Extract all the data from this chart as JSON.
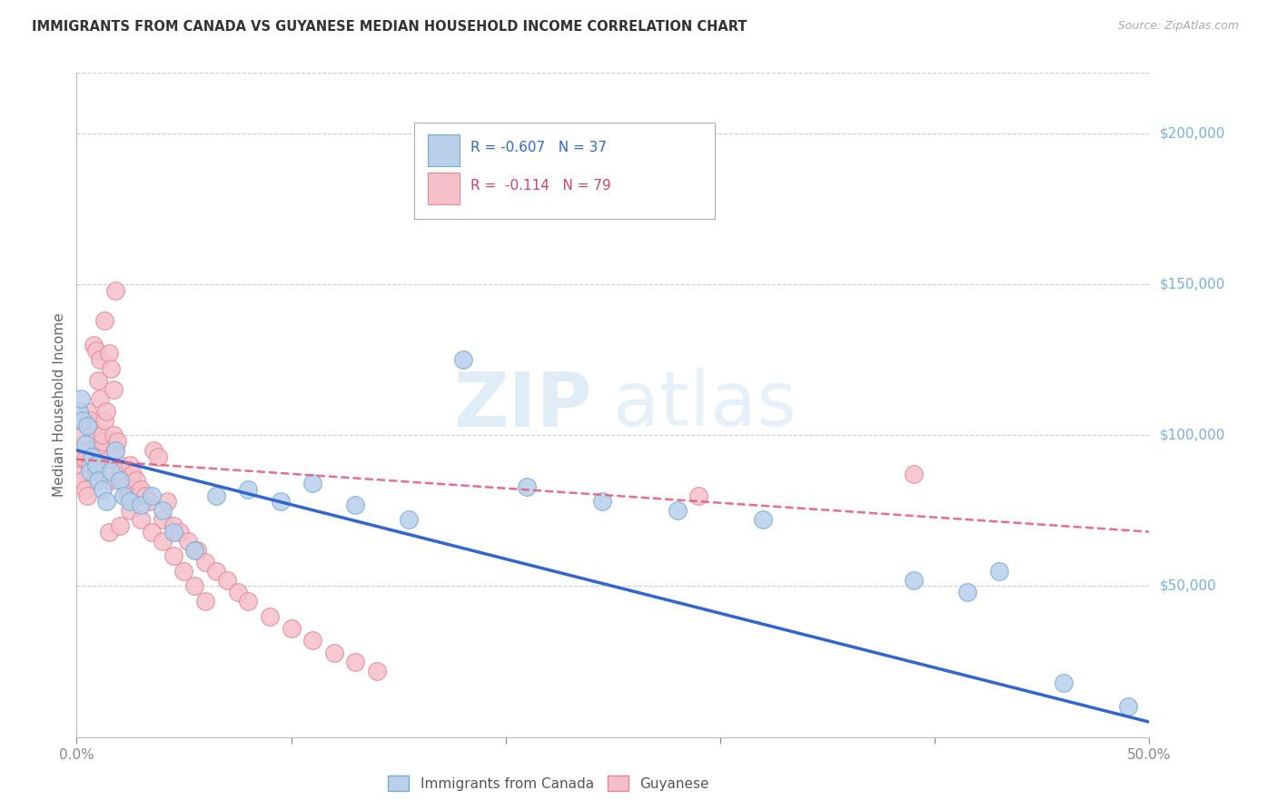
{
  "title": "IMMIGRANTS FROM CANADA VS GUYANESE MEDIAN HOUSEHOLD INCOME CORRELATION CHART",
  "source": "Source: ZipAtlas.com",
  "ylabel": "Median Household Income",
  "ytick_labels": [
    "$50,000",
    "$100,000",
    "$150,000",
    "$200,000"
  ],
  "ytick_values": [
    50000,
    100000,
    150000,
    200000
  ],
  "ymin": 0,
  "ymax": 220000,
  "xmin": 0.0,
  "xmax": 0.5,
  "canada_color": "#b8d0ea",
  "canada_edge_color": "#7aaad0",
  "guyanese_color": "#f5c0ca",
  "guyanese_edge_color": "#e08898",
  "canada_line_color": "#3366cc",
  "guyanese_line_color": "#e06080",
  "legend_r_canada": "R = -0.607",
  "legend_n_canada": "N = 37",
  "legend_r_guyanese": "R =  -0.114",
  "legend_n_guyanese": "N = 79",
  "canada_x": [
    0.001,
    0.002,
    0.003,
    0.004,
    0.005,
    0.006,
    0.007,
    0.009,
    0.01,
    0.012,
    0.014,
    0.016,
    0.018,
    0.02,
    0.022,
    0.025,
    0.03,
    0.035,
    0.04,
    0.045,
    0.055,
    0.065,
    0.08,
    0.095,
    0.11,
    0.13,
    0.155,
    0.18,
    0.21,
    0.245,
    0.28,
    0.32,
    0.39,
    0.415,
    0.43,
    0.46,
    0.49
  ],
  "canada_y": [
    108000,
    112000,
    105000,
    97000,
    103000,
    88000,
    93000,
    90000,
    85000,
    82000,
    78000,
    88000,
    95000,
    85000,
    80000,
    78000,
    77000,
    80000,
    75000,
    68000,
    62000,
    80000,
    82000,
    78000,
    84000,
    77000,
    72000,
    125000,
    83000,
    78000,
    75000,
    72000,
    52000,
    48000,
    55000,
    18000,
    10000
  ],
  "guyanese_x": [
    0.001,
    0.002,
    0.002,
    0.003,
    0.003,
    0.004,
    0.004,
    0.005,
    0.005,
    0.006,
    0.006,
    0.007,
    0.007,
    0.008,
    0.008,
    0.009,
    0.009,
    0.01,
    0.01,
    0.011,
    0.011,
    0.012,
    0.012,
    0.013,
    0.013,
    0.014,
    0.015,
    0.015,
    0.016,
    0.016,
    0.017,
    0.017,
    0.018,
    0.018,
    0.019,
    0.02,
    0.021,
    0.022,
    0.023,
    0.024,
    0.025,
    0.026,
    0.027,
    0.028,
    0.029,
    0.03,
    0.032,
    0.034,
    0.036,
    0.038,
    0.04,
    0.042,
    0.045,
    0.048,
    0.052,
    0.056,
    0.06,
    0.065,
    0.07,
    0.075,
    0.08,
    0.09,
    0.1,
    0.11,
    0.12,
    0.13,
    0.14,
    0.015,
    0.02,
    0.025,
    0.03,
    0.035,
    0.04,
    0.045,
    0.05,
    0.055,
    0.06,
    0.29,
    0.39
  ],
  "guyanese_y": [
    92000,
    87000,
    95000,
    85000,
    100000,
    82000,
    92000,
    80000,
    108000,
    105000,
    90000,
    102000,
    95000,
    93000,
    130000,
    88000,
    128000,
    118000,
    95000,
    112000,
    125000,
    98000,
    100000,
    138000,
    105000,
    108000,
    127000,
    92000,
    122000,
    85000,
    115000,
    100000,
    148000,
    95000,
    98000,
    90000,
    88000,
    85000,
    83000,
    80000,
    90000,
    87000,
    82000,
    85000,
    80000,
    82000,
    80000,
    78000,
    95000,
    93000,
    72000,
    78000,
    70000,
    68000,
    65000,
    62000,
    58000,
    55000,
    52000,
    48000,
    45000,
    40000,
    36000,
    32000,
    28000,
    25000,
    22000,
    68000,
    70000,
    75000,
    72000,
    68000,
    65000,
    60000,
    55000,
    50000,
    45000,
    80000,
    87000
  ],
  "watermark_zip": "ZIP",
  "watermark_atlas": "atlas",
  "background_color": "#ffffff",
  "grid_color": "#cccccc"
}
